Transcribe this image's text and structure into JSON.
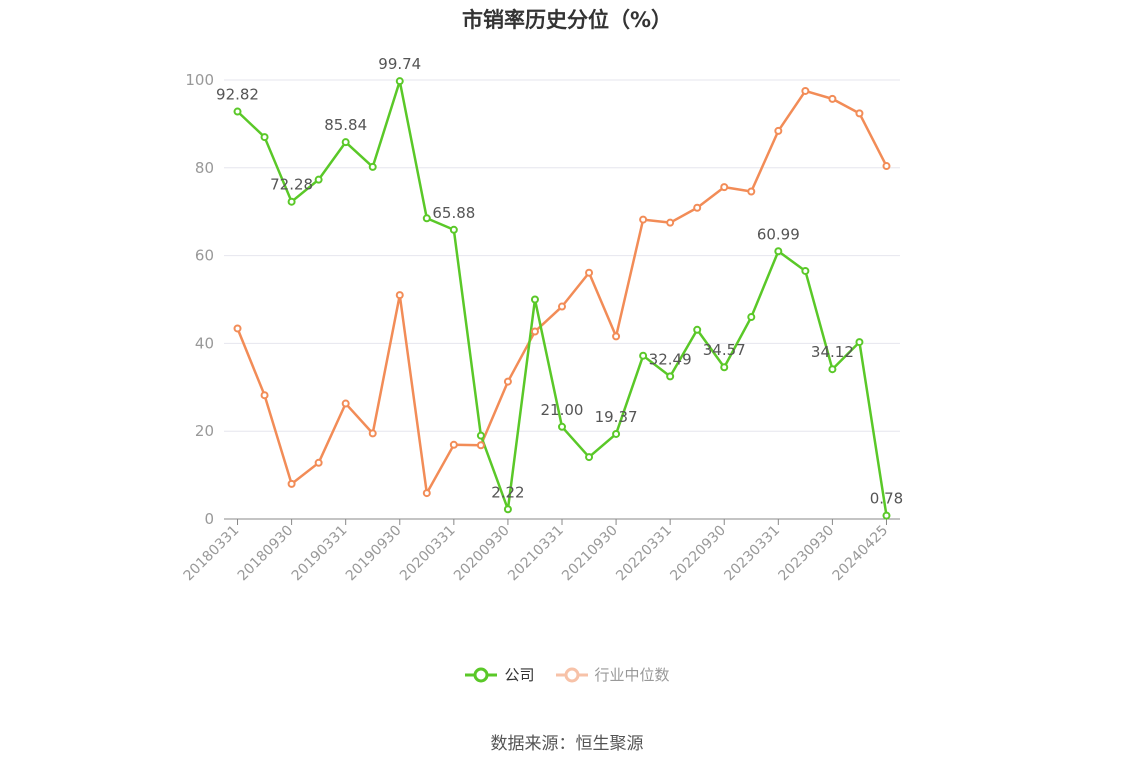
{
  "title": "市销率历史分位（%）",
  "source": "数据来源：恒生聚源",
  "colors": {
    "company": "#5ac828",
    "industry": "#f28c57",
    "axis": "#999999",
    "grid": "#e6e6ee",
    "label": "#555555"
  },
  "legend": {
    "company_label": "公司",
    "industry_label": "行业中位数"
  },
  "chart_data": {
    "type": "line",
    "title": "市销率历史分位（%）",
    "ylim": [
      0,
      100
    ],
    "yticks": [
      0,
      20,
      40,
      60,
      80,
      100
    ],
    "grid": true,
    "legend_position": "bottom",
    "x": [
      "20180331",
      "20180630",
      "20180930",
      "20181231",
      "20190331",
      "20190630",
      "20190930",
      "20191231",
      "20200331",
      "20200630",
      "20200930",
      "20201231",
      "20210331",
      "20210630",
      "20210930",
      "20211231",
      "20220331",
      "20220630",
      "20220930",
      "20221231",
      "20230331",
      "20230630",
      "20230930",
      "20231231",
      "20240425"
    ],
    "xtick_labels": [
      "20180331",
      "20180930",
      "20190331",
      "20190930",
      "20200331",
      "20200930",
      "20210331",
      "20210930",
      "20220331",
      "20220930",
      "20230331",
      "20230930",
      "20240425"
    ],
    "series": [
      {
        "name": "公司",
        "key": "company",
        "values": [
          92.82,
          87.0,
          72.28,
          77.3,
          85.84,
          80.2,
          99.74,
          68.5,
          65.88,
          19.0,
          2.22,
          50.0,
          21.0,
          14.1,
          19.37,
          37.2,
          32.49,
          43.1,
          34.57,
          46.0,
          60.99,
          56.5,
          34.12,
          40.3,
          0.78
        ],
        "labels": [
          "92.82",
          "",
          "72.28",
          "",
          "85.84",
          "",
          "99.74",
          "",
          "65.88",
          "",
          "2.22",
          "",
          "21.00",
          "",
          "19.37",
          "",
          "32.49",
          "",
          "34.57",
          "",
          "60.99",
          "",
          "34.12",
          "",
          "0.78"
        ]
      },
      {
        "name": "行业中位数",
        "key": "industry",
        "values": [
          43.4,
          28.2,
          8.0,
          12.8,
          26.3,
          19.5,
          51.0,
          5.9,
          16.9,
          16.8,
          31.3,
          42.7,
          48.4,
          56.1,
          41.6,
          68.2,
          67.5,
          70.9,
          75.6,
          74.6,
          88.4,
          97.5,
          95.7,
          92.4,
          80.4
        ],
        "labels": []
      }
    ]
  }
}
